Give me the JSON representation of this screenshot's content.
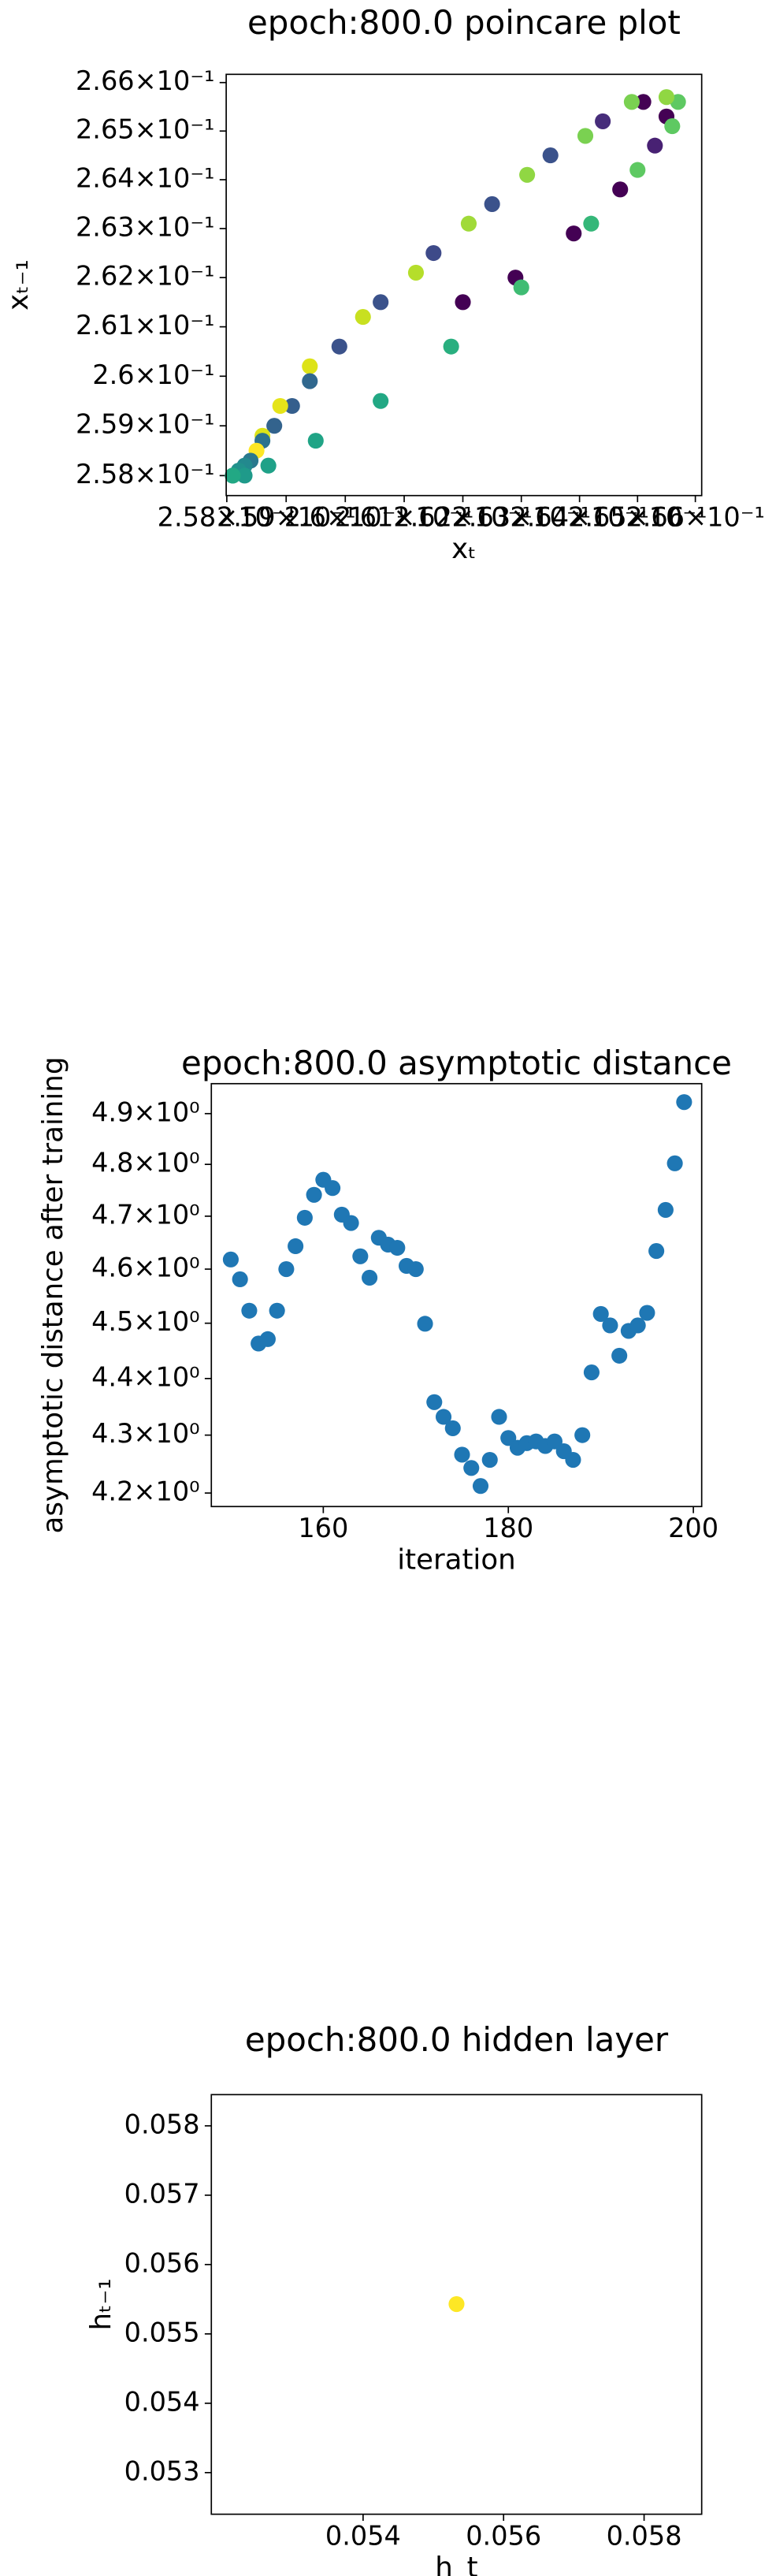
{
  "chart_data": [
    {
      "type": "scatter",
      "title": "epoch:800.0 poincare plot",
      "xlabel": "xₜ",
      "ylabel": "xₜ₋₁",
      "xscale": "log",
      "yscale": "log",
      "x": [
        0.2657,
        0.2655,
        0.2651,
        0.2649,
        0.2655,
        0.2656,
        0.2644,
        0.2641,
        0.2653,
        0.2635,
        0.265,
        0.2631,
        0.2647,
        0.2625,
        0.2642,
        0.2639,
        0.2621,
        0.2615,
        0.2629,
        0.263,
        0.2612,
        0.2606,
        0.262,
        0.2603,
        0.2599,
        0.2618,
        0.2594,
        0.2594,
        0.2606,
        0.2591,
        0.2589,
        0.2595,
        0.2588,
        0.2586,
        0.2586,
        0.2585,
        0.2587,
        0.2584,
        0.2583,
        0.2582,
        0.2581,
        0.2583,
        0.2581
      ],
      "y": [
        0.2656,
        0.2657,
        0.2656,
        0.2656,
        0.2653,
        0.2651,
        0.2652,
        0.2649,
        0.2647,
        0.2645,
        0.2642,
        0.2641,
        0.2638,
        0.2635,
        0.2631,
        0.2629,
        0.2631,
        0.2625,
        0.262,
        0.2618,
        0.2621,
        0.2615,
        0.2615,
        0.2612,
        0.2606,
        0.2606,
        0.2602,
        0.2599,
        0.2595,
        0.2594,
        0.2594,
        0.2587,
        0.259,
        0.2588,
        0.2587,
        0.2585,
        0.2582,
        0.2583,
        0.2582,
        0.2581,
        0.258,
        0.258,
        0.258
      ],
      "colors": [
        "#5ec962",
        "#90d743",
        "#440154",
        "#7ad151",
        "#440154",
        "#5ec962",
        "#472d7b",
        "#7ad151",
        "#482173",
        "#3b528b",
        "#5ec962",
        "#90d743",
        "#440154",
        "#3b528b",
        "#35b779",
        "#440154",
        "#a0da39",
        "#3e4a89",
        "#440154",
        "#3fbc73",
        "#b5de2b",
        "#3b528b",
        "#440154",
        "#c8e020",
        "#3b528b",
        "#29af7f",
        "#dde318",
        "#31688e",
        "#22a884",
        "#355f8d",
        "#e5e419",
        "#20a486",
        "#33638d",
        "#dde318",
        "#2c728e",
        "#fde725",
        "#1fa188",
        "#2a788e",
        "#23898e",
        "#21918c",
        "#1f9e89",
        "#1f9a8a",
        "#22a884"
      ],
      "xlim": [
        0.25799,
        0.26611
      ],
      "ylim": [
        0.2576,
        0.26617
      ],
      "xticks": [
        {
          "value": 0.258,
          "label": "2.58×10⁻¹"
        },
        {
          "value": 0.259,
          "label": "2.59×10⁻¹"
        },
        {
          "value": 0.26,
          "label": "2.6×10⁻¹"
        },
        {
          "value": 0.261,
          "label": "2.61×10⁻¹"
        },
        {
          "value": 0.262,
          "label": "2.62×10⁻¹"
        },
        {
          "value": 0.263,
          "label": "2.63×10⁻¹"
        },
        {
          "value": 0.264,
          "label": "2.64×10⁻¹"
        },
        {
          "value": 0.265,
          "label": "2.65×10⁻¹"
        },
        {
          "value": 0.266,
          "label": "2.66×10⁻¹"
        }
      ],
      "yticks": [
        {
          "value": 0.258,
          "label": "2.58×10⁻¹"
        },
        {
          "value": 0.259,
          "label": "2.59×10⁻¹"
        },
        {
          "value": 0.26,
          "label": "2.6×10⁻¹"
        },
        {
          "value": 0.261,
          "label": "2.61×10⁻¹"
        },
        {
          "value": 0.262,
          "label": "2.62×10⁻¹"
        },
        {
          "value": 0.263,
          "label": "2.63×10⁻¹"
        },
        {
          "value": 0.264,
          "label": "2.64×10⁻¹"
        },
        {
          "value": 0.265,
          "label": "2.65×10⁻¹"
        },
        {
          "value": 0.266,
          "label": "2.66×10⁻¹"
        }
      ]
    },
    {
      "type": "scatter",
      "title": "epoch:800.0 asymptotic distance",
      "xlabel": "iteration",
      "ylabel": "asymptotic distance after training",
      "yscale": "log",
      "color": "#1f77b4",
      "x": [
        150,
        151,
        152,
        153,
        154,
        155,
        156,
        157,
        158,
        159,
        160,
        161,
        162,
        163,
        164,
        165,
        166,
        167,
        168,
        169,
        170,
        171,
        172,
        173,
        174,
        175,
        176,
        177,
        178,
        179,
        180,
        181,
        182,
        183,
        184,
        185,
        186,
        187,
        188,
        189,
        190,
        191,
        192,
        193,
        194,
        195,
        196,
        197,
        198,
        199
      ],
      "y": [
        4.618,
        4.581,
        4.523,
        4.463,
        4.471,
        4.523,
        4.6,
        4.643,
        4.697,
        4.741,
        4.77,
        4.754,
        4.703,
        4.687,
        4.624,
        4.584,
        4.659,
        4.646,
        4.64,
        4.606,
        4.6,
        4.499,
        4.358,
        4.332,
        4.312,
        4.266,
        4.243,
        4.212,
        4.257,
        4.332,
        4.295,
        4.278,
        4.286,
        4.289,
        4.281,
        4.289,
        4.272,
        4.257,
        4.3,
        4.411,
        4.517,
        4.496,
        4.441,
        4.486,
        4.496,
        4.519,
        4.634,
        4.712,
        4.802,
        4.923
      ],
      "xlim": [
        147.9,
        200.9
      ],
      "ylim": [
        4.177,
        4.96
      ],
      "xticks": [
        160,
        180,
        200
      ],
      "yticks": [
        {
          "value": 4.2,
          "label": "4.2×10⁰"
        },
        {
          "value": 4.3,
          "label": "4.3×10⁰"
        },
        {
          "value": 4.4,
          "label": "4.4×10⁰"
        },
        {
          "value": 4.5,
          "label": "4.5×10⁰"
        },
        {
          "value": 4.6,
          "label": "4.6×10⁰"
        },
        {
          "value": 4.7,
          "label": "4.7×10⁰"
        },
        {
          "value": 4.8,
          "label": "4.8×10⁰"
        },
        {
          "value": 4.9,
          "label": "4.9×10⁰"
        }
      ]
    },
    {
      "type": "scatter",
      "title": "epoch:800.0 hidden layer",
      "xlabel": "h_t",
      "ylabel": "hₜ₋₁",
      "color": "#fde725",
      "x": [
        0.05533
      ],
      "y": [
        0.05543
      ],
      "xlim": [
        0.05184,
        0.05882
      ],
      "ylim": [
        0.0524,
        0.05845
      ],
      "xticks": [
        0.054,
        0.056,
        0.058
      ],
      "yticks": [
        0.053,
        0.054,
        0.055,
        0.056,
        0.057,
        0.058
      ]
    }
  ]
}
